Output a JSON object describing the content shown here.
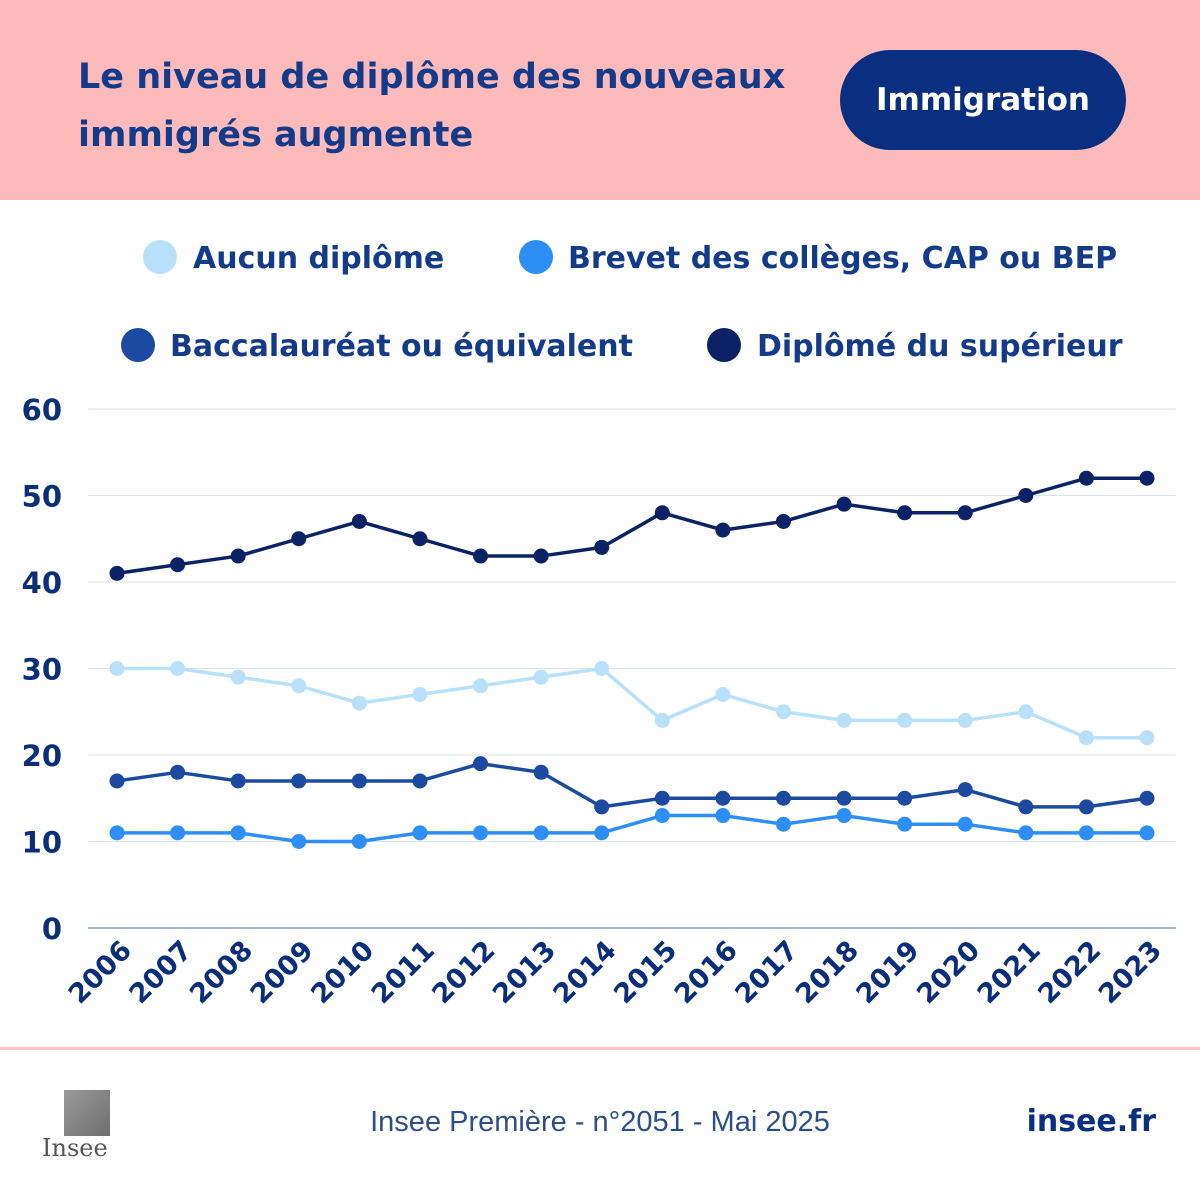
{
  "header": {
    "title": "Le niveau de diplôme des nouveaux immigrés augmente",
    "tag": "Immigration"
  },
  "footer": {
    "source": "Insee Première - n°2051 - Mai 2025",
    "site": "insee.fr",
    "logo_text": "Insee"
  },
  "colors": {
    "header_bg": "#fdbabb",
    "tag_bg": "#0a2e80",
    "text": "#0b2e7a"
  },
  "chart_data": {
    "type": "line",
    "x": [
      "2006",
      "2007",
      "2008",
      "2009",
      "2010",
      "2011",
      "2012",
      "2013",
      "2014",
      "2015",
      "2016",
      "2017",
      "2018",
      "2019",
      "2020",
      "2021",
      "2022",
      "2023"
    ],
    "ylim": [
      0,
      60
    ],
    "yticks": [
      0,
      10,
      20,
      30,
      40,
      50,
      60
    ],
    "grid": true,
    "legend_position": "top",
    "xlabel": "",
    "ylabel": "",
    "series": [
      {
        "name": "Aucun diplôme",
        "color": "#b9e0fa",
        "values": [
          30,
          30,
          29,
          28,
          26,
          27,
          28,
          29,
          30,
          24,
          27,
          25,
          24,
          24,
          24,
          25,
          22,
          22
        ]
      },
      {
        "name": "Brevet des collèges, CAP ou BEP",
        "color": "#2d8ef5",
        "values": [
          11,
          11,
          11,
          10,
          10,
          11,
          11,
          11,
          11,
          13,
          13,
          12,
          13,
          12,
          12,
          11,
          11,
          11
        ]
      },
      {
        "name": "Baccalauréat ou équivalent",
        "color": "#1c4aa0",
        "values": [
          17,
          18,
          17,
          17,
          17,
          17,
          19,
          18,
          14,
          15,
          15,
          15,
          15,
          15,
          16,
          14,
          14,
          15
        ]
      },
      {
        "name": "Diplômé du supérieur",
        "color": "#0b2266",
        "values": [
          41,
          42,
          43,
          45,
          47,
          45,
          43,
          43,
          44,
          48,
          46,
          47,
          49,
          48,
          48,
          50,
          52,
          52
        ]
      }
    ]
  }
}
